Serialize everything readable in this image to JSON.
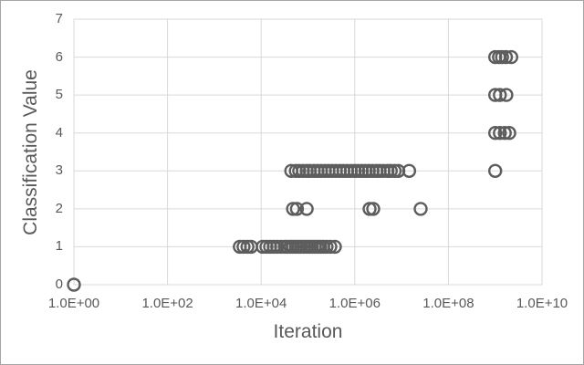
{
  "chart_data": {
    "type": "scatter",
    "title": "",
    "xlabel": "Iteration",
    "ylabel": "Classification Value",
    "x_scale": "log",
    "xlim": [
      1,
      10000000000
    ],
    "ylim": [
      0,
      7
    ],
    "grid": true,
    "legend": "none",
    "x_ticks": [
      {
        "value": 1,
        "label": "1.0E+00"
      },
      {
        "value": 100,
        "label": "1.0E+02"
      },
      {
        "value": 10000,
        "label": "1.0E+04"
      },
      {
        "value": 1000000,
        "label": "1.0E+06"
      },
      {
        "value": 100000000,
        "label": "1.0E+08"
      },
      {
        "value": 10000000000,
        "label": "1.0E+10"
      }
    ],
    "y_ticks": [
      {
        "value": 0,
        "label": "0"
      },
      {
        "value": 1,
        "label": "1"
      },
      {
        "value": 2,
        "label": "2"
      },
      {
        "value": 3,
        "label": "3"
      },
      {
        "value": 4,
        "label": "4"
      },
      {
        "value": 5,
        "label": "5"
      },
      {
        "value": 6,
        "label": "6"
      },
      {
        "value": 7,
        "label": "7"
      }
    ],
    "colors": {
      "marker_stroke": "#5d5d5d",
      "grid": "#d9d9d9",
      "axis_text": "#595959",
      "figure_border": "#a6a6a6"
    },
    "marker": {
      "shape": "open-circle",
      "radius": 6.5,
      "stroke_width": 2.4
    },
    "points": [
      [
        1,
        0
      ],
      [
        3500,
        1
      ],
      [
        4200,
        1
      ],
      [
        5100,
        1
      ],
      [
        6100,
        1
      ],
      [
        10800,
        1
      ],
      [
        13000,
        1
      ],
      [
        15500,
        1
      ],
      [
        18600,
        1
      ],
      [
        22000,
        1
      ],
      [
        26600,
        1
      ],
      [
        32000,
        1
      ],
      [
        36000,
        1
      ],
      [
        42000,
        1
      ],
      [
        48000,
        1
      ],
      [
        55000,
        1
      ],
      [
        63000,
        1
      ],
      [
        71000,
        1
      ],
      [
        82000,
        1
      ],
      [
        94000,
        1
      ],
      [
        107000,
        1
      ],
      [
        122000,
        1
      ],
      [
        140000,
        1
      ],
      [
        160000,
        1
      ],
      [
        183000,
        1
      ],
      [
        210000,
        1
      ],
      [
        250000,
        1
      ],
      [
        300000,
        1
      ],
      [
        376000,
        1
      ],
      [
        48000,
        2
      ],
      [
        58000,
        2
      ],
      [
        94000,
        2
      ],
      [
        2070000,
        2
      ],
      [
        2480000,
        2
      ],
      [
        25600000,
        2
      ],
      [
        44000,
        3
      ],
      [
        55000,
        3
      ],
      [
        65000,
        3
      ],
      [
        78000,
        3
      ],
      [
        94000,
        3
      ],
      [
        110000,
        3
      ],
      [
        133000,
        3
      ],
      [
        160000,
        3
      ],
      [
        190000,
        3
      ],
      [
        230000,
        3
      ],
      [
        275000,
        3
      ],
      [
        330000,
        3
      ],
      [
        395000,
        3
      ],
      [
        480000,
        3
      ],
      [
        570000,
        3
      ],
      [
        685000,
        3
      ],
      [
        820000,
        3
      ],
      [
        990000,
        3
      ],
      [
        1180000,
        3
      ],
      [
        1410000,
        3
      ],
      [
        1680000,
        3
      ],
      [
        2000000,
        3
      ],
      [
        2400000,
        3
      ],
      [
        2900000,
        3
      ],
      [
        3400000,
        3
      ],
      [
        4100000,
        3
      ],
      [
        5000000,
        3
      ],
      [
        5900000,
        3
      ],
      [
        7100000,
        3
      ],
      [
        8500000,
        3
      ],
      [
        14500000,
        3
      ],
      [
        1000000000,
        3
      ],
      [
        1000000000,
        4
      ],
      [
        1260000000,
        4
      ],
      [
        1600000000,
        4
      ],
      [
        2000000000,
        4
      ],
      [
        1000000000,
        5
      ],
      [
        1260000000,
        5
      ],
      [
        1730000000,
        5
      ],
      [
        1000000000,
        6
      ],
      [
        1200000000,
        6
      ],
      [
        1400000000,
        6
      ],
      [
        1700000000,
        6
      ],
      [
        2200000000,
        6
      ]
    ]
  }
}
